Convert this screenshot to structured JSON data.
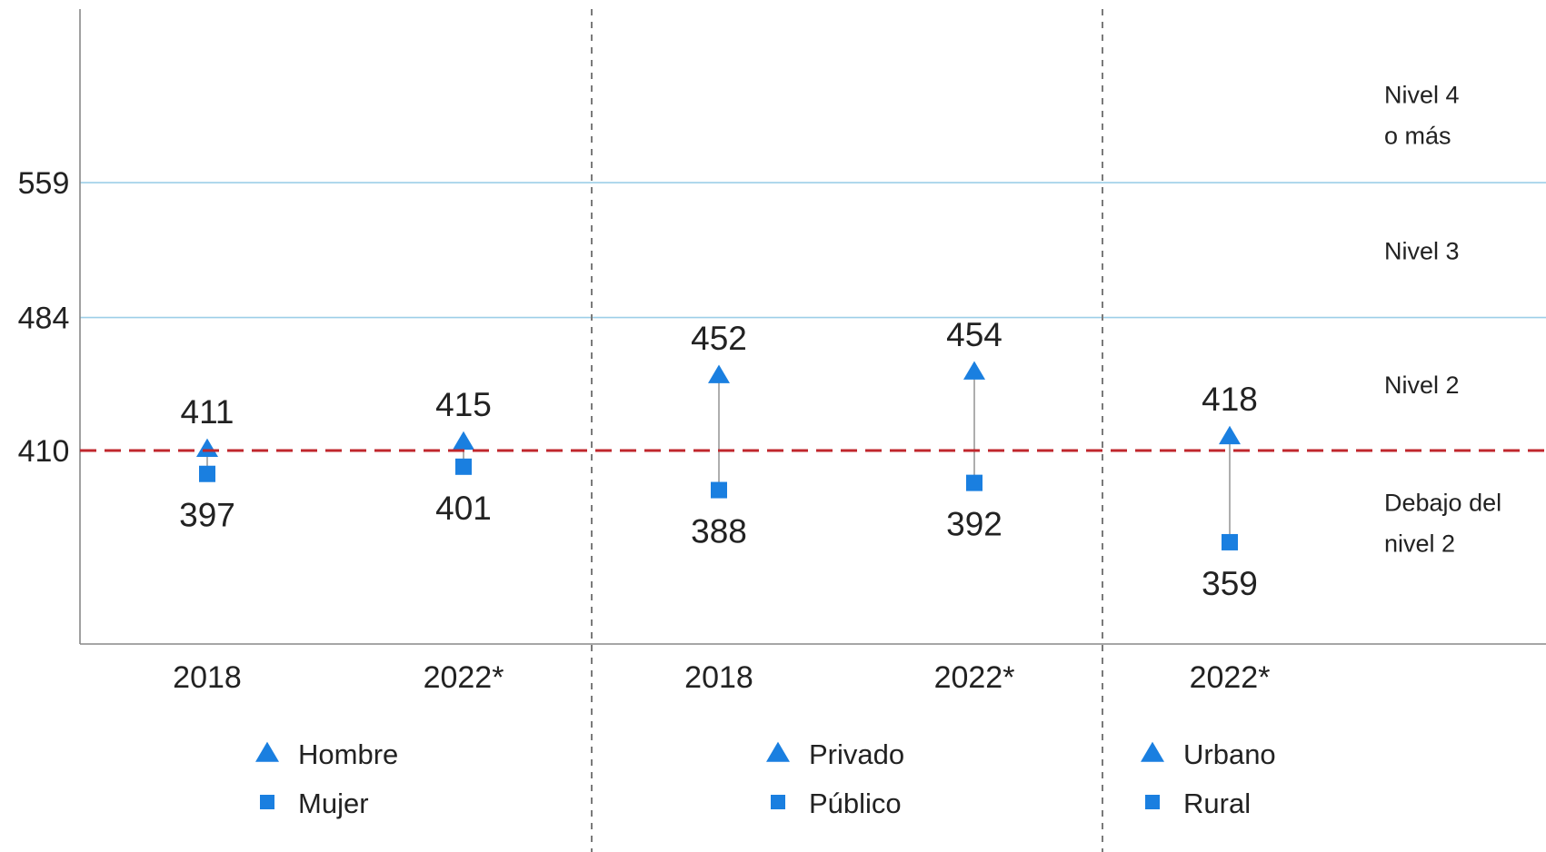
{
  "chart_data": {
    "type": "scatter",
    "colors": {
      "marker": "#1a7fe0",
      "threshold_line": "#c0272d",
      "level_lines": "#9dcfe8",
      "connector": "#9a9a9a",
      "separator": "#7a7a7a"
    },
    "y_ticks": [
      "410",
      "484",
      "559"
    ],
    "ylim": [
      326,
      636
    ],
    "threshold": 410,
    "level_lines": [
      484,
      559
    ],
    "levels": [
      {
        "label_lines": [
          "Nivel 4",
          "o más"
        ],
        "y_mid": 597
      },
      {
        "label_lines": [
          "Nivel 3"
        ],
        "y_mid": 521.5
      },
      {
        "label_lines": [
          "Nivel 2"
        ],
        "y_mid": 447
      },
      {
        "label_lines": [
          "Debajo del",
          "nivel 2"
        ],
        "y_mid": 370
      }
    ],
    "groups": [
      {
        "legend": [
          {
            "marker": "triangle",
            "label": "Hombre"
          },
          {
            "marker": "square",
            "label": "Mujer"
          }
        ],
        "categories": [
          {
            "x_label": "2018",
            "high": 411,
            "low": 397,
            "high_label": "411",
            "low_label": "397"
          },
          {
            "x_label": "2022*",
            "high": 415,
            "low": 401,
            "high_label": "415",
            "low_label": "401"
          }
        ]
      },
      {
        "legend": [
          {
            "marker": "triangle",
            "label": "Privado"
          },
          {
            "marker": "square",
            "label": "Público"
          }
        ],
        "categories": [
          {
            "x_label": "2018",
            "high": 452,
            "low": 388,
            "high_label": "452",
            "low_label": "388"
          },
          {
            "x_label": "2022*",
            "high": 454,
            "low": 392,
            "high_label": "454",
            "low_label": "392"
          }
        ]
      },
      {
        "legend": [
          {
            "marker": "triangle",
            "label": "Urbano"
          },
          {
            "marker": "square",
            "label": "Rural"
          }
        ],
        "categories": [
          {
            "x_label": "2022*",
            "high": 418,
            "low": 359,
            "high_label": "418",
            "low_label": "359"
          }
        ]
      }
    ]
  }
}
